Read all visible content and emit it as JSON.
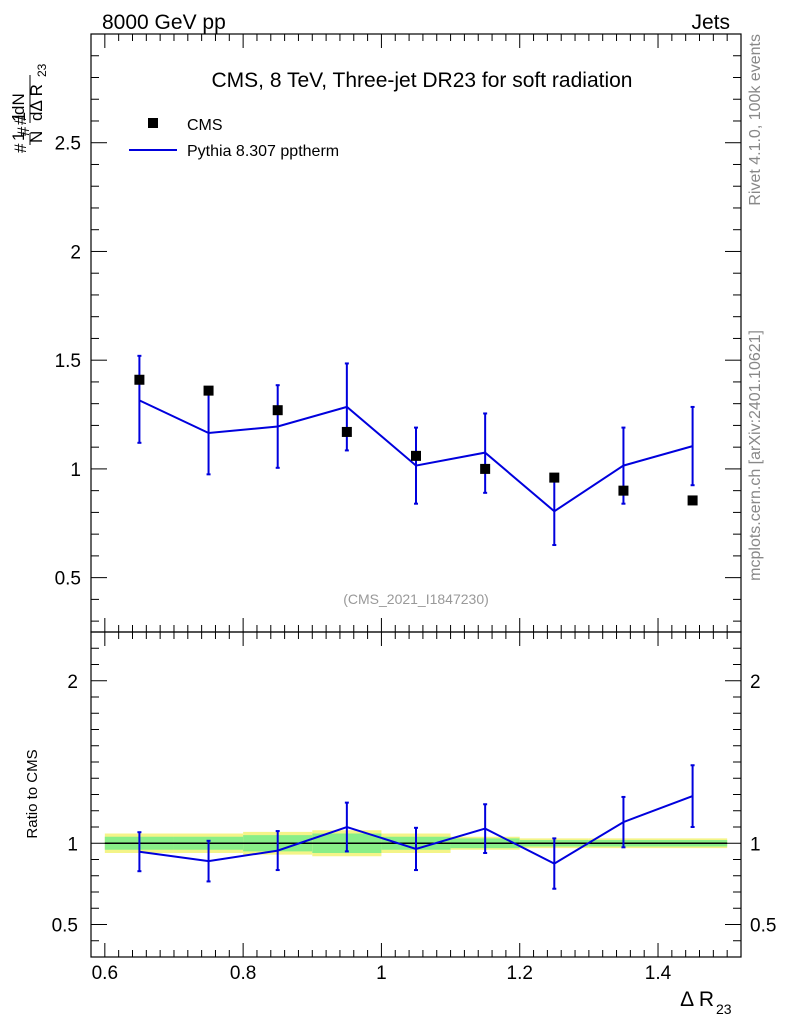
{
  "header": {
    "left": "8000 GeV pp",
    "right": "Jets"
  },
  "side_text": {
    "rivet": "Rivet 4.1.0,  100k events",
    "mcplots": "mcplots.cern.ch [arXiv:2401.10621]"
  },
  "chart_data": {
    "type": "scatter",
    "title": "CMS, 8 TeV, Three-jet DR23 for soft radiation",
    "analysis_id": "(CMS_2021_I1847230)",
    "xlabel": "Δ R",
    "xlabel_sub": "23",
    "ylabel_parts": [
      "#",
      "1",
      "N",
      "#",
      "dN",
      "dΔ R",
      "23"
    ],
    "ratio_ylabel": "Ratio to CMS",
    "xlim": [
      0.58,
      1.52
    ],
    "ylim": [
      0.25,
      3.0
    ],
    "ratio_ylim": [
      0.3,
      2.3
    ],
    "x_ticks": [
      "0.6",
      "0.8",
      "1",
      "1.2",
      "1.4"
    ],
    "x_tick_values": [
      0.6,
      0.8,
      1.0,
      1.2,
      1.4
    ],
    "y_ticks": [
      "0.5",
      "1",
      "1.5",
      "2",
      "2.5"
    ],
    "y_tick_values": [
      0.5,
      1.0,
      1.5,
      2.0,
      2.5
    ],
    "ratio_y_ticks": [
      "0.5",
      "1",
      "2"
    ],
    "ratio_y_tick_values": [
      0.5,
      1.0,
      2.0
    ],
    "legend": [
      {
        "name": "CMS",
        "style": "marker"
      },
      {
        "name": "Pythia 8.307 pptherm",
        "style": "line"
      }
    ],
    "bin_edges": [
      0.6,
      0.7,
      0.8,
      0.9,
      1.0,
      1.1,
      1.2,
      1.3,
      1.4,
      1.5
    ],
    "series": [
      {
        "name": "CMS",
        "x": [
          0.65,
          0.75,
          0.85,
          0.95,
          1.05,
          1.15,
          1.25,
          1.35,
          1.45
        ],
        "values": [
          1.41,
          1.36,
          1.27,
          1.17,
          1.06,
          1.0,
          0.96,
          0.9,
          0.855
        ],
        "unc_inner": [
          0.04,
          0.04,
          0.05,
          0.06,
          0.04,
          0.03,
          0.02,
          0.02,
          0.02
        ],
        "unc_outer": [
          0.06,
          0.06,
          0.07,
          0.08,
          0.06,
          0.04,
          0.03,
          0.03,
          0.03
        ]
      },
      {
        "name": "Pythia 8.307 pptherm",
        "x": [
          0.65,
          0.75,
          0.85,
          0.95,
          1.05,
          1.15,
          1.25,
          1.35,
          1.45
        ],
        "values": [
          1.315,
          1.165,
          1.195,
          1.285,
          1.015,
          1.075,
          0.805,
          1.015,
          1.105
        ],
        "err_low": [
          0.195,
          0.19,
          0.19,
          0.2,
          0.175,
          0.185,
          0.155,
          0.175,
          0.18
        ],
        "err_high": [
          0.205,
          0.19,
          0.19,
          0.2,
          0.175,
          0.18,
          0.155,
          0.175,
          0.18
        ]
      }
    ],
    "ratio": {
      "values": [
        0.948,
        0.89,
        0.955,
        1.1,
        0.965,
        1.09,
        0.875,
        1.13,
        1.29
      ],
      "err_low": [
        0.12,
        0.125,
        0.12,
        0.15,
        0.13,
        0.15,
        0.155,
        0.155,
        0.19
      ],
      "err_high": [
        0.12,
        0.125,
        0.12,
        0.15,
        0.13,
        0.15,
        0.155,
        0.155,
        0.19
      ]
    },
    "colors": {
      "data": "#000000",
      "mc": "#0000dd",
      "band_inner": "#88ee88",
      "band_outer": "#f4f488"
    }
  }
}
